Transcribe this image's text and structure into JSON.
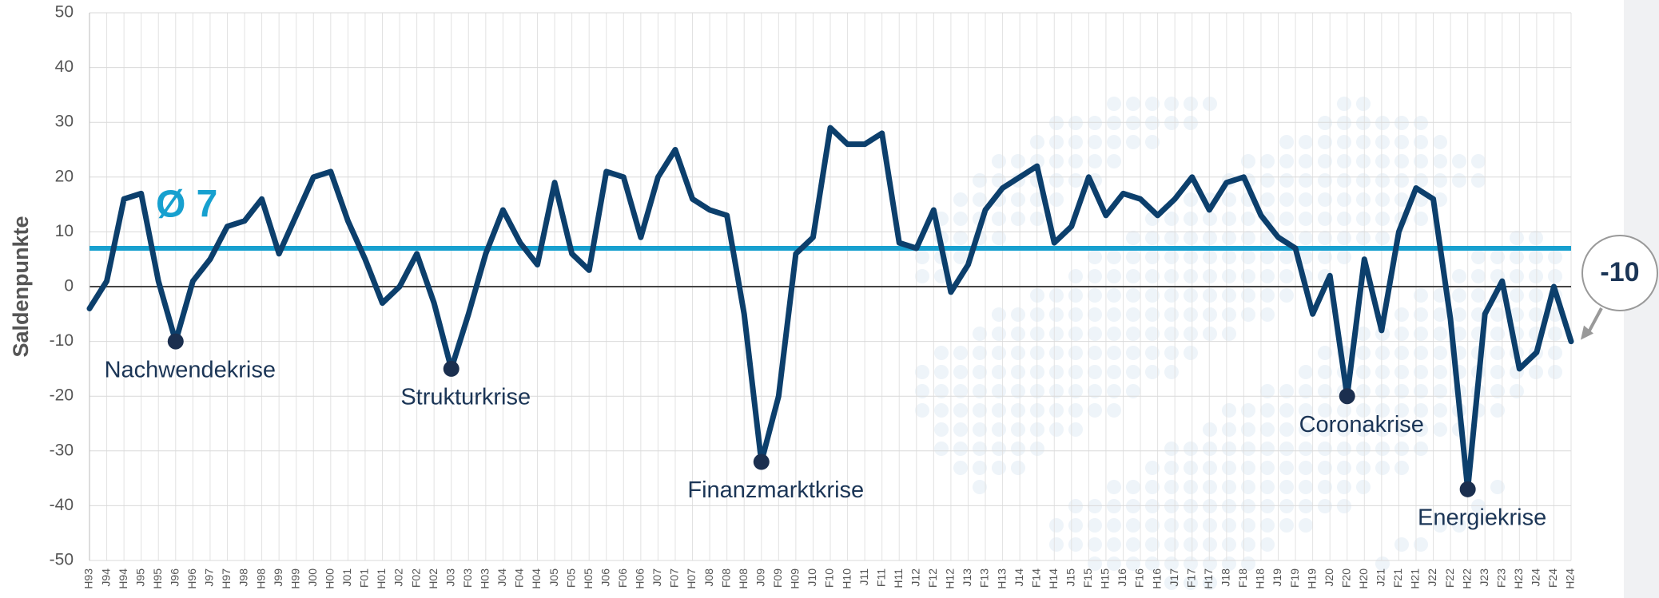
{
  "chart_data": {
    "type": "line",
    "y_axis_label": "Saldenpunkte",
    "categories": [
      "H93",
      "J94",
      "H94",
      "J95",
      "H95",
      "J96",
      "H96",
      "J97",
      "H97",
      "J98",
      "H98",
      "J99",
      "H99",
      "J00",
      "H00",
      "J01",
      "F01",
      "H01",
      "J02",
      "F02",
      "H02",
      "J03",
      "F03",
      "H03",
      "J04",
      "F04",
      "H04",
      "J05",
      "F05",
      "H05",
      "J06",
      "F06",
      "H06",
      "J07",
      "F07",
      "H07",
      "J08",
      "F08",
      "H08",
      "J09",
      "F09",
      "H09",
      "J10",
      "F10",
      "H10",
      "J11",
      "F11",
      "H11",
      "J12",
      "F12",
      "H12",
      "J13",
      "F13",
      "H13",
      "J14",
      "F14",
      "H14",
      "J15",
      "F15",
      "H15",
      "J16",
      "F16",
      "H16",
      "J17",
      "F17",
      "H17",
      "J18",
      "F18",
      "H18",
      "J19",
      "F19",
      "H19",
      "J20",
      "F20",
      "H20",
      "J21",
      "F21",
      "H21",
      "J22",
      "F22",
      "H22",
      "J23",
      "F23",
      "H23",
      "J24",
      "F24",
      "H24"
    ],
    "series": [
      {
        "color": "#0c3f6c",
        "values": [
          -4,
          1,
          16,
          17,
          1,
          -10,
          1,
          5,
          11,
          12,
          16,
          6,
          13,
          20,
          21,
          12,
          5,
          -3,
          0,
          6,
          -3,
          -15,
          -5,
          6,
          14,
          8,
          4,
          19,
          6,
          3,
          21,
          20,
          9,
          20,
          25,
          16,
          14,
          13,
          -5,
          -32,
          -20,
          6,
          9,
          29,
          26,
          26,
          28,
          8,
          7,
          14,
          -1,
          4,
          14,
          18,
          20,
          22,
          8,
          11,
          20,
          13,
          17,
          16,
          13,
          16,
          20,
          14,
          19,
          20,
          13,
          9,
          7,
          -5,
          2,
          -20,
          5,
          -8,
          10,
          18,
          16,
          -6,
          -37,
          -5,
          1,
          -15,
          -12,
          0,
          -10
        ]
      }
    ],
    "average": {
      "value": 7,
      "label": "Ø 7",
      "color": "#17a0cf"
    },
    "annotations": [
      {
        "label": "Nachwendekrise",
        "category": "J96"
      },
      {
        "label": "Strukturkrise",
        "category": "J03"
      },
      {
        "label": "Finanzmarktkrise",
        "category": "J09"
      },
      {
        "label": "Coronakrise",
        "category": "F20"
      },
      {
        "label": "Energiekrise",
        "category": "H22"
      }
    ],
    "ylim": [
      -50,
      50
    ],
    "yticks": [
      -50,
      -40,
      -30,
      -20,
      -10,
      0,
      10,
      20,
      30,
      40,
      50
    ],
    "grid": true
  }
}
